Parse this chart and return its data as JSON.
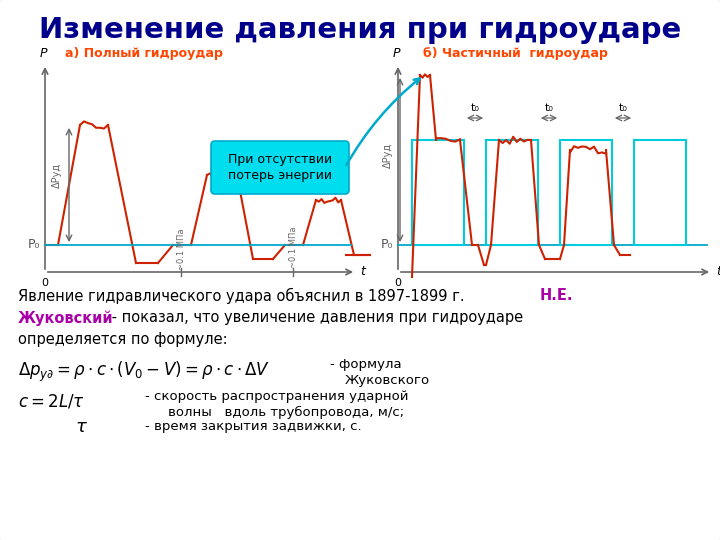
{
  "title": "Изменение давления при гидроударе",
  "title_color": "#00008B",
  "title_fontsize": 21,
  "subtitle_a": "а) Полный гидроудар",
  "subtitle_b": "б) Частичный  гидроудар",
  "subtitle_color": "#FF4500",
  "background_color": "#FFFFFF",
  "border_color": "#AAAAAA",
  "graph_a_color": "#CC2200",
  "graph_b_color_pulse": "#CC2200",
  "graph_b_color_rect": "#00CCDD",
  "baseline_color": "#00AACC",
  "axis_color": "#666666",
  "p0_color": "#555555",
  "ann_bg": "#00DDEE",
  "ann_text": "При отсутствии\nпотерь энергии",
  "zhukov_color": "#AA00AA",
  "text_formula1": "$\\Delta p_{y\\partial} = \\rho \\cdot c \\cdot (V_0 - V) = \\rho \\cdot c \\cdot \\Delta V$",
  "text_formula2": "$c = 2L / \\tau$",
  "text_tau": "$\\tau$"
}
